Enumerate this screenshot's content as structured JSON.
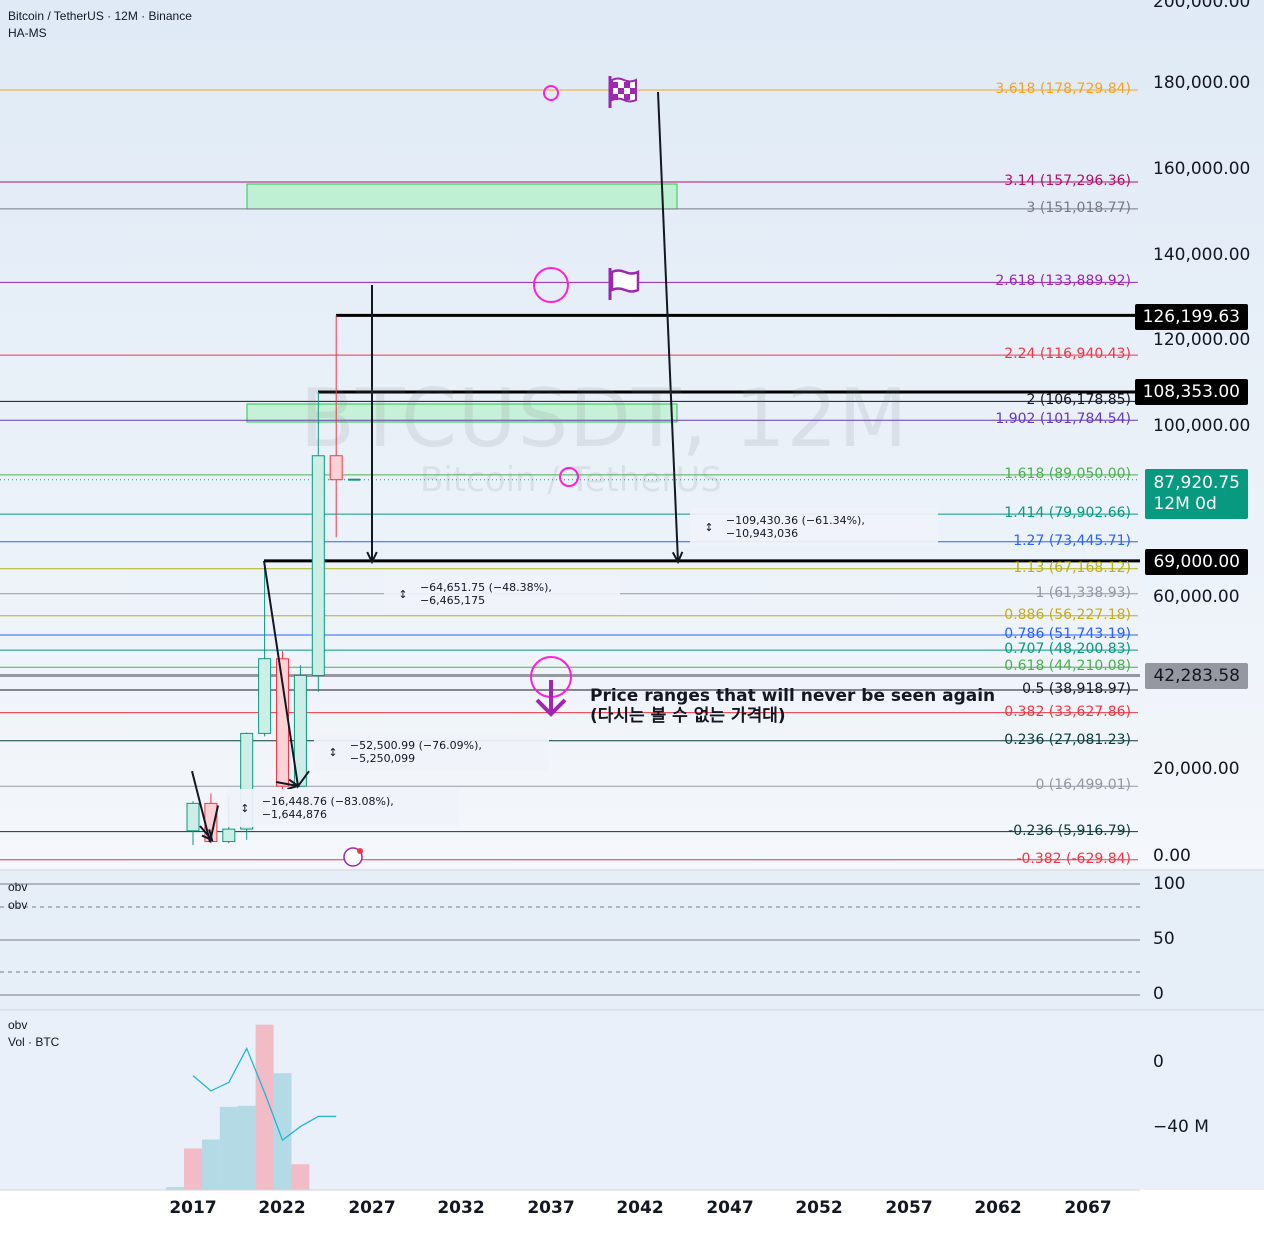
{
  "header": {
    "symbol_line": "Bitcoin / TetherUS · 12M · Binance",
    "indicator": "HA-MS"
  },
  "watermark": {
    "ticker": "BTCUSDT, 12M",
    "name": "Bitcoin / TetherUS"
  },
  "colors": {
    "up": "#089981",
    "down": "#f23645",
    "background_top": "#dfeaf6",
    "zone_fill": "#b7f0c9",
    "zone_border": "#26c94a",
    "magenta": "#ff1fd6",
    "purple": "#9c27b0"
  },
  "chart_data": [
    {
      "type": "candlestick",
      "title": "Bitcoin / TetherUS · 12M · Binance",
      "ylim": [
        0,
        200000
      ],
      "x_ticks": [
        "2017",
        "2022",
        "2027",
        "2032",
        "2037",
        "2042",
        "2047",
        "2052",
        "2057",
        "2062",
        "2067"
      ],
      "y_ticks": [
        "200,000.00",
        "180,000.00",
        "160,000.00",
        "140,000.00",
        "120,000.00",
        "100,000.00",
        "60,000.00",
        "20,000.00",
        "0.00"
      ],
      "candles": [
        {
          "year": 2017,
          "open": 6100,
          "high": 13000,
          "low": 2800,
          "close": 12500,
          "dir": "up"
        },
        {
          "year": 2018,
          "open": 12500,
          "high": 14800,
          "low": 3200,
          "close": 3600,
          "dir": "down"
        },
        {
          "year": 2019,
          "open": 3600,
          "high": 13800,
          "low": 3200,
          "close": 6500,
          "dir": "up"
        },
        {
          "year": 2020,
          "open": 6500,
          "high": 29000,
          "low": 4000,
          "close": 28800,
          "dir": "up"
        },
        {
          "year": 2021,
          "open": 28800,
          "high": 69000,
          "low": 28100,
          "close": 46200,
          "dir": "up"
        },
        {
          "year": 2022,
          "open": 46200,
          "high": 48000,
          "low": 15500,
          "close": 16500,
          "dir": "down"
        },
        {
          "year": 2023,
          "open": 16500,
          "high": 44700,
          "low": 16400,
          "close": 42300,
          "dir": "up"
        },
        {
          "year": 2024,
          "open": 42300,
          "high": 108353,
          "low": 38500,
          "close": 93500,
          "dir": "up"
        },
        {
          "year": 2025,
          "open": 93500,
          "high": 126199.63,
          "low": 74500,
          "close": 87920.75,
          "dir": "down"
        }
      ],
      "price_tags": [
        {
          "label": "126,199.63",
          "value": 126199.63,
          "kind": "level"
        },
        {
          "label": "108,353.00",
          "value": 108353,
          "kind": "level"
        },
        {
          "label": "87,920.75",
          "sub": "12M 0d",
          "value": 87920.75,
          "kind": "current"
        },
        {
          "label": "69,000.00",
          "value": 69000,
          "kind": "level"
        },
        {
          "label": "42,283.58",
          "value": 42283.58,
          "kind": "gray"
        }
      ],
      "fib_levels": [
        {
          "label": "3.618 (178,729.84)",
          "value": 178729.84,
          "color": "#f7a21b"
        },
        {
          "label": "3.14 (157,296.36)",
          "value": 157296.36,
          "color": "#b2106b"
        },
        {
          "label": "3 (151,018.77)",
          "value": 151018.77,
          "color": "#787b86"
        },
        {
          "label": "2.618 (133,889.92)",
          "value": 133889.92,
          "color": "#9c27b0"
        },
        {
          "label": "2.24 (116,940.43)",
          "value": 116940.43,
          "color": "#f23645"
        },
        {
          "label": "2 (106,178.85)",
          "value": 106178.85,
          "color": "#131722"
        },
        {
          "label": "1.902 (101,784.54)",
          "value": 101784.54,
          "color": "#673ab7"
        },
        {
          "label": "1.618 (89,050.00)",
          "value": 89050,
          "color": "#4caf50"
        },
        {
          "label": "1.414 (79,902.66)",
          "value": 79902.66,
          "color": "#089981"
        },
        {
          "label": "1.27 (73,445.71)",
          "value": 73445.71,
          "color": "#2962ff"
        },
        {
          "label": "1.13 (67,168.12)",
          "value": 67168.12,
          "color": "#b5b01b"
        },
        {
          "label": "1 (61,338.93)",
          "value": 61338.93,
          "color": "#9598a1"
        },
        {
          "label": "0.886 (56,227.18)",
          "value": 56227.18,
          "color": "#c5ac1b"
        },
        {
          "label": "0.786 (51,743.19)",
          "value": 51743.19,
          "color": "#2962ff"
        },
        {
          "label": "0.707 (48,200.83)",
          "value": 48200.83,
          "color": "#089981"
        },
        {
          "label": "0.618 (44,210.08)",
          "value": 44210.08,
          "color": "#4caf50"
        },
        {
          "label": "0.5 (38,918.97)",
          "value": 38918.97,
          "color": "#131722"
        },
        {
          "label": "0.382 (33,627.86)",
          "value": 33627.86,
          "color": "#f23645"
        },
        {
          "label": "0.236 (27,081.23)",
          "value": 27081.23,
          "color": "#0b3d3a"
        },
        {
          "label": "0 (16,499.01)",
          "value": 16499.01,
          "color": "#9598a1"
        },
        {
          "label": "-0.236 (5,916.79)",
          "value": 5916.79,
          "color": "#0b3d3a"
        },
        {
          "label": "-0.382 (-629.84)",
          "value": -629.84,
          "color": "#f23645"
        }
      ],
      "measurements": [
        {
          "label": "−109,430.36 (−61.34%), −10,943,036"
        },
        {
          "label": "−64,651.75 (−48.38%), −6,465,175"
        },
        {
          "label": "−52,500.99 (−76.09%), −5,250,099"
        },
        {
          "label": "−16,448.76 (−83.08%), −1,644,876"
        }
      ],
      "annotation": {
        "line1": "Price ranges that will never be seen again",
        "line2": "(다시는 볼 수 없는 가격대)"
      }
    },
    {
      "type": "line",
      "pane_labels": [
        "obv",
        "obv"
      ],
      "y_ticks": [
        "100",
        "50",
        "0"
      ],
      "ylim": [
        0,
        100
      ]
    },
    {
      "type": "bar",
      "pane_labels": [
        "obv",
        "Vol · BTC"
      ],
      "y_ticks": [
        "0",
        "−40 M"
      ],
      "volume": [
        {
          "year": 2016,
          "value": 0.3,
          "dir": "up"
        },
        {
          "year": 2017,
          "value": 4.2,
          "dir": "down"
        },
        {
          "year": 2018,
          "value": 5.1,
          "dir": "up"
        },
        {
          "year": 2019,
          "value": 8.4,
          "dir": "up"
        },
        {
          "year": 2020,
          "value": 8.5,
          "dir": "up"
        },
        {
          "year": 2021,
          "value": 16.7,
          "dir": "down"
        },
        {
          "year": 2022,
          "value": 11.8,
          "dir": "up"
        },
        {
          "year": 2023,
          "value": 2.6,
          "dir": "down"
        }
      ],
      "obv": [
        {
          "year": 2017,
          "value": -8
        },
        {
          "year": 2018,
          "value": -17
        },
        {
          "year": 2019,
          "value": -12
        },
        {
          "year": 2020,
          "value": 8
        },
        {
          "year": 2021,
          "value": -18
        },
        {
          "year": 2022,
          "value": -46
        },
        {
          "year": 2023,
          "value": -38
        },
        {
          "year": 2024,
          "value": -32
        },
        {
          "year": 2025,
          "value": -32
        }
      ]
    }
  ]
}
